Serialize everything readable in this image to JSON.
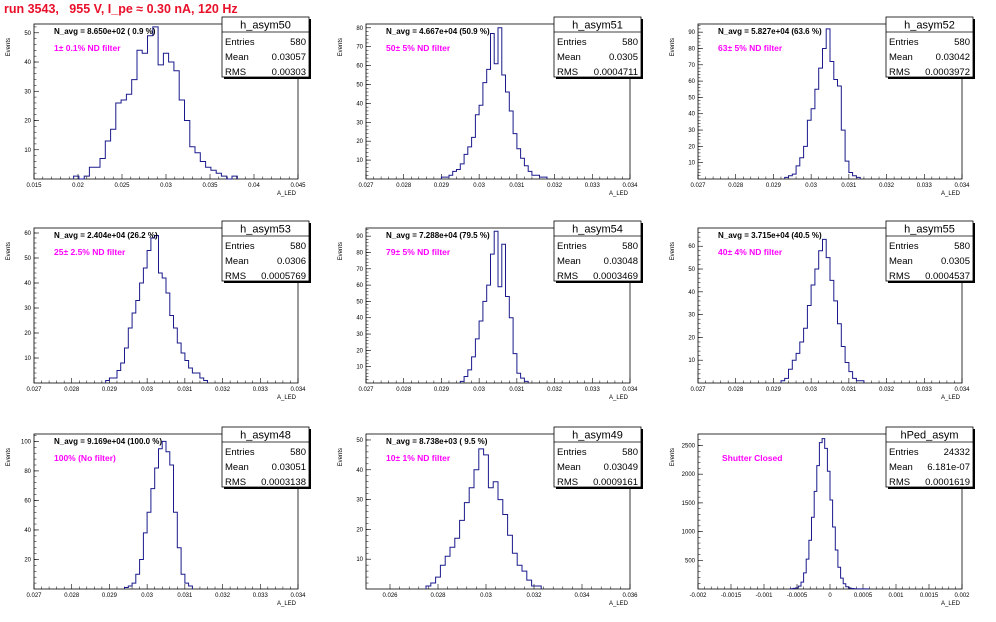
{
  "page": {
    "title": "run 3543,   955 V, I_pe ≈ 0.30 nA, 120 Hz"
  },
  "colors": {
    "title": "#e8102a",
    "hist_line": "#1a1a8c",
    "annotation": "#ff00ff",
    "frame": "#000000"
  },
  "chart_data": [
    {
      "type": "histogram",
      "name": "h_asym50",
      "ylabel": "Events",
      "xlabel": "A_LED",
      "nav": "N_avg = 8.650e+02 ( 0.9 %)",
      "annotation": "1± 0.1% ND filter",
      "stats": {
        "title": "h_asym50",
        "rows": [
          [
            "Entries",
            "580"
          ],
          [
            "Mean",
            "0.03057"
          ],
          [
            "RMS",
            "0.00303"
          ]
        ]
      },
      "xlim": [
        0.015,
        0.045
      ],
      "ylim": [
        0,
        53
      ],
      "xticks": [
        0.015,
        0.02,
        0.025,
        0.03,
        0.035,
        0.04,
        0.045
      ],
      "xtick_labels": [
        "0.015",
        "0.02",
        "0.025",
        "0.03",
        "0.035",
        "0.04",
        "0.045"
      ],
      "yticks": [
        10,
        20,
        30,
        40,
        50
      ],
      "ytick_labels": [
        "10",
        "20",
        "30",
        "40",
        "50"
      ],
      "bins": {
        "start": 0.0195,
        "width": 0.0006,
        "counts": [
          1,
          0,
          1,
          4,
          4,
          7,
          13,
          17,
          26,
          27,
          29,
          34,
          44,
          43,
          49,
          52,
          39,
          43,
          40,
          37,
          27,
          20,
          11,
          9,
          6,
          4,
          3,
          2,
          1,
          0,
          1
        ]
      }
    },
    {
      "type": "histogram",
      "name": "h_asym51",
      "ylabel": "Events",
      "xlabel": "A_LED",
      "nav": "N_avg = 4.667e+04 (50.9 %)",
      "annotation": "50± 5% ND filter",
      "stats": {
        "title": "h_asym51",
        "rows": [
          [
            "Entries",
            "580"
          ],
          [
            "Mean",
            "0.0305"
          ],
          [
            "RMS",
            "0.0004711"
          ]
        ]
      },
      "xlim": [
        0.027,
        0.034
      ],
      "ylim": [
        0,
        82
      ],
      "xticks": [
        0.027,
        0.028,
        0.029,
        0.03,
        0.031,
        0.032,
        0.033,
        0.034
      ],
      "xtick_labels": [
        "0.027",
        "0.028",
        "0.029",
        "0.03",
        "0.031",
        "0.032",
        "0.033",
        "0.034"
      ],
      "yticks": [
        10,
        20,
        30,
        40,
        50,
        60,
        70,
        80
      ],
      "ytick_labels": [
        "10",
        "20",
        "30",
        "40",
        "50",
        "60",
        "70",
        "80"
      ],
      "bins": {
        "start": 0.029,
        "width": 0.0001,
        "counts": [
          1,
          1,
          2,
          4,
          5,
          8,
          13,
          17,
          22,
          34,
          39,
          51,
          58,
          77,
          61,
          80,
          55,
          46,
          36,
          24,
          16,
          11,
          7,
          4,
          2,
          2,
          1,
          1
        ]
      }
    },
    {
      "type": "histogram",
      "name": "h_asym52",
      "ylabel": "Events",
      "xlabel": "A_LED",
      "nav": "N_avg = 5.827e+04 (63.6 %)",
      "annotation": "63± 5% ND filter",
      "stats": {
        "title": "h_asym52",
        "rows": [
          [
            "Entries",
            "580"
          ],
          [
            "Mean",
            "0.03042"
          ],
          [
            "RMS",
            "0.0003972"
          ]
        ]
      },
      "xlim": [
        0.027,
        0.034
      ],
      "ylim": [
        0,
        95
      ],
      "xticks": [
        0.027,
        0.028,
        0.029,
        0.03,
        0.031,
        0.032,
        0.033,
        0.034
      ],
      "xtick_labels": [
        "0.027",
        "0.028",
        "0.029",
        "0.03",
        "0.031",
        "0.032",
        "0.033",
        "0.034"
      ],
      "yticks": [
        10,
        20,
        30,
        40,
        50,
        60,
        70,
        80,
        90
      ],
      "ytick_labels": [
        "10",
        "20",
        "30",
        "40",
        "50",
        "60",
        "70",
        "80",
        "90"
      ],
      "bins": {
        "start": 0.0293,
        "width": 0.0001,
        "counts": [
          1,
          2,
          3,
          8,
          13,
          20,
          36,
          43,
          55,
          68,
          80,
          92,
          72,
          61,
          57,
          30,
          11,
          4,
          2,
          1
        ]
      }
    },
    {
      "type": "histogram",
      "name": "h_asym53",
      "ylabel": "Events",
      "xlabel": "A_LED",
      "nav": "N_avg = 2.404e+04 (26.2 %)",
      "annotation": "25± 2.5% ND filter",
      "stats": {
        "title": "h_asym53",
        "rows": [
          [
            "Entries",
            "580"
          ],
          [
            "Mean",
            "0.0306"
          ],
          [
            "RMS",
            "0.0005769"
          ]
        ]
      },
      "xlim": [
        0.027,
        0.034
      ],
      "ylim": [
        0,
        62
      ],
      "xticks": [
        0.027,
        0.028,
        0.029,
        0.03,
        0.031,
        0.032,
        0.033,
        0.034
      ],
      "xtick_labels": [
        "0.027",
        "0.028",
        "0.029",
        "0.03",
        "0.031",
        "0.032",
        "0.033",
        "0.034"
      ],
      "yticks": [
        10,
        20,
        30,
        40,
        50,
        60
      ],
      "ytick_labels": [
        "10",
        "20",
        "30",
        "40",
        "50",
        "60"
      ],
      "bins": {
        "start": 0.0289,
        "width": 0.0001,
        "counts": [
          1,
          2,
          2,
          5,
          8,
          14,
          22,
          28,
          33,
          40,
          46,
          53,
          58,
          59,
          44,
          42,
          36,
          27,
          22,
          16,
          12,
          9,
          6,
          4,
          4,
          2,
          1
        ]
      }
    },
    {
      "type": "histogram",
      "name": "h_asym54",
      "ylabel": "Events",
      "xlabel": "A_LED",
      "nav": "N_avg = 7.288e+04 (79.5 %)",
      "annotation": "79± 5% ND filter",
      "stats": {
        "title": "h_asym54",
        "rows": [
          [
            "Entries",
            "580"
          ],
          [
            "Mean",
            "0.03048"
          ],
          [
            "RMS",
            "0.0003469"
          ]
        ]
      },
      "xlim": [
        0.027,
        0.034
      ],
      "ylim": [
        0,
        95
      ],
      "xticks": [
        0.027,
        0.028,
        0.029,
        0.03,
        0.031,
        0.032,
        0.033,
        0.034
      ],
      "xtick_labels": [
        "0.027",
        "0.028",
        "0.029",
        "0.03",
        "0.031",
        "0.032",
        "0.033",
        "0.034"
      ],
      "yticks": [
        10,
        20,
        30,
        40,
        50,
        60,
        70,
        80,
        90
      ],
      "ytick_labels": [
        "10",
        "20",
        "30",
        "40",
        "50",
        "60",
        "70",
        "80",
        "90"
      ],
      "bins": {
        "start": 0.0295,
        "width": 0.0001,
        "counts": [
          1,
          4,
          8,
          16,
          27,
          38,
          50,
          60,
          79,
          93,
          59,
          85,
          53,
          40,
          18,
          6,
          3,
          1
        ]
      }
    },
    {
      "type": "histogram",
      "name": "h_asym55",
      "ylabel": "Events",
      "xlabel": "A_LED",
      "nav": "N_avg = 3.715e+04 (40.5 %)",
      "annotation": "40± 4% ND filter",
      "stats": {
        "title": "h_asym55",
        "rows": [
          [
            "Entries",
            "580"
          ],
          [
            "Mean",
            "0.0305"
          ],
          [
            "RMS",
            "0.0004537"
          ]
        ]
      },
      "xlim": [
        0.027,
        0.034
      ],
      "ylim": [
        0,
        68
      ],
      "xticks": [
        0.027,
        0.028,
        0.029,
        0.03,
        0.031,
        0.032,
        0.033,
        0.034
      ],
      "xtick_labels": [
        "0.027",
        "0.028",
        "0.029",
        "0.03",
        "0.031",
        "0.032",
        "0.033",
        "0.034"
      ],
      "yticks": [
        10,
        20,
        30,
        40,
        50,
        60
      ],
      "ytick_labels": [
        "10",
        "20",
        "30",
        "40",
        "50",
        "60"
      ],
      "bins": {
        "start": 0.0292,
        "width": 0.0001,
        "counts": [
          1,
          2,
          6,
          10,
          13,
          18,
          24,
          34,
          43,
          50,
          58,
          63,
          55,
          45,
          36,
          26,
          16,
          9,
          5,
          2,
          1,
          1
        ]
      }
    },
    {
      "type": "histogram",
      "name": "h_asym48",
      "ylabel": "Events",
      "xlabel": "A_LED",
      "nav": "N_avg = 9.169e+04 (100.0 %)",
      "annotation": "100% (No filter)",
      "stats": {
        "title": "h_asym48",
        "rows": [
          [
            "Entries",
            "580"
          ],
          [
            "Mean",
            "0.03051"
          ],
          [
            "RMS",
            "0.0003138"
          ]
        ]
      },
      "xlim": [
        0.027,
        0.034
      ],
      "ylim": [
        0,
        105
      ],
      "xticks": [
        0.027,
        0.028,
        0.029,
        0.03,
        0.031,
        0.032,
        0.033,
        0.034
      ],
      "xtick_labels": [
        "0.027",
        "0.028",
        "0.029",
        "0.03",
        "0.031",
        "0.032",
        "0.033",
        "0.034"
      ],
      "yticks": [
        20,
        40,
        60,
        80,
        100
      ],
      "ytick_labels": [
        "20",
        "40",
        "60",
        "80",
        "100"
      ],
      "bins": {
        "start": 0.0294,
        "width": 0.0001,
        "counts": [
          1,
          2,
          4,
          10,
          20,
          38,
          52,
          68,
          82,
          95,
          100,
          93,
          84,
          52,
          28,
          10,
          4,
          2
        ]
      }
    },
    {
      "type": "histogram",
      "name": "h_asym49",
      "ylabel": "Events",
      "xlabel": "A_LED",
      "nav": "N_avg = 8.738e+03 ( 9.5 %)",
      "annotation": "10± 1% ND filter",
      "stats": {
        "title": "h_asym49",
        "rows": [
          [
            "Entries",
            "580"
          ],
          [
            "Mean",
            "0.03049"
          ],
          [
            "RMS",
            "0.0009161"
          ]
        ]
      },
      "xlim": [
        0.025,
        0.036
      ],
      "ylim": [
        0,
        52
      ],
      "xticks": [
        0.026,
        0.028,
        0.03,
        0.032,
        0.034,
        0.036
      ],
      "xtick_labels": [
        "0.026",
        "0.028",
        "0.03",
        "0.032",
        "0.034",
        "0.036"
      ],
      "yticks": [
        10,
        20,
        30,
        40,
        50
      ],
      "ytick_labels": [
        "10",
        "20",
        "30",
        "40",
        "50"
      ],
      "bins": {
        "start": 0.0275,
        "width": 0.0002,
        "counts": [
          1,
          2,
          4,
          8,
          11,
          14,
          17,
          23,
          29,
          34,
          40,
          47,
          45,
          34,
          36,
          30,
          25,
          18,
          12,
          8,
          6,
          3,
          1,
          1
        ]
      }
    },
    {
      "type": "histogram",
      "name": "hPed_asym",
      "ylabel": "Events",
      "xlabel": "A_LED",
      "nav": "",
      "annotation": "Shutter Closed",
      "stats": {
        "title": "hPed_asym",
        "rows": [
          [
            "Entries",
            "24332"
          ],
          [
            "Mean",
            "6.181e-07"
          ],
          [
            "RMS",
            "0.0001619"
          ]
        ]
      },
      "xlim": [
        -0.002,
        0.002
      ],
      "ylim": [
        0,
        2700
      ],
      "xticks": [
        -0.002,
        -0.0015,
        -0.001,
        -0.0005,
        0,
        0.0005,
        0.001,
        0.0015,
        0.002
      ],
      "xtick_labels": [
        "-0.002",
        "-0.0015",
        "-0.001",
        "-0.0005",
        "0",
        "0.0005",
        "0.001",
        "0.0015",
        "0.002"
      ],
      "yticks": [
        500,
        1000,
        1500,
        2000,
        2500
      ],
      "ytick_labels": [
        "500",
        "1000",
        "1500",
        "2000",
        "2500"
      ],
      "bins": {
        "start": -0.0006,
        "width": 4e-05,
        "counts": [
          5,
          10,
          20,
          50,
          120,
          280,
          520,
          850,
          1250,
          1700,
          2150,
          2550,
          2620,
          2450,
          2050,
          1550,
          1080,
          680,
          380,
          190,
          90,
          40,
          18,
          8,
          4,
          2,
          1,
          1,
          1,
          1
        ]
      }
    }
  ]
}
